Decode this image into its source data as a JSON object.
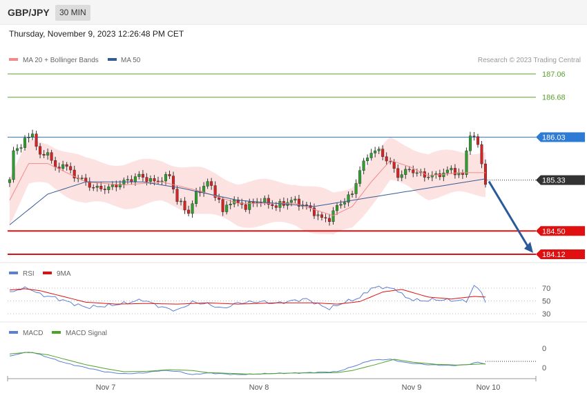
{
  "header": {
    "symbol": "GBP/JPY",
    "timeframe": "30 MIN",
    "datetime": "Thursday, November 9, 2023 12:26:48 PM CET"
  },
  "colors": {
    "ma20": "#f28a8a",
    "ma50": "#355c94",
    "bollinger_fill": "#fde2e2",
    "up_candle": "#2f9e2f",
    "down_candle": "#d62424",
    "resistance": "#5aa02c",
    "pivot": "#2e7bd6",
    "support": "#e01010",
    "current_price_bg": "#333333",
    "arrow": "#2a5a99",
    "rsi": "#5b7fd6",
    "rsi_ma": "#e01010",
    "macd": "#5b7fd6",
    "macd_signal": "#4ea326"
  },
  "chart_data": [
    {
      "type": "candlestick",
      "name": "price",
      "legend": [
        {
          "label": "MA 20 + Bollinger Bands",
          "color": "#f28a8a"
        },
        {
          "label": "MA 50",
          "color": "#355c94"
        }
      ],
      "watermark": "Research © 2023 Trading Central",
      "levels": [
        {
          "value": 187.06,
          "label": "187.06",
          "kind": "resistance"
        },
        {
          "value": 186.68,
          "label": "186.68",
          "kind": "resistance"
        },
        {
          "value": 186.03,
          "label": "186.03",
          "kind": "pivot"
        },
        {
          "value": 184.5,
          "label": "184.50",
          "kind": "support"
        },
        {
          "value": 184.12,
          "label": "184.12",
          "kind": "support"
        }
      ],
      "current_price": {
        "value": 185.33,
        "label": "185.33"
      },
      "x_labels": [
        "Nov 7",
        "Nov 8",
        "Nov 9",
        "Nov 10"
      ],
      "x_label_index": [
        25,
        65,
        105,
        125
      ],
      "candle_count": 126,
      "close_anchors": [
        [
          0,
          185.3
        ],
        [
          1,
          185.8
        ],
        [
          3,
          185.9
        ],
        [
          6,
          186.1
        ],
        [
          8,
          185.7
        ],
        [
          10,
          185.8
        ],
        [
          12,
          185.5
        ],
        [
          14,
          185.6
        ],
        [
          17,
          185.4
        ],
        [
          20,
          185.3
        ],
        [
          22,
          185.2
        ],
        [
          26,
          185.2
        ],
        [
          30,
          185.3
        ],
        [
          34,
          185.4
        ],
        [
          38,
          185.3
        ],
        [
          42,
          185.4
        ],
        [
          44,
          185.0
        ],
        [
          47,
          184.8
        ],
        [
          49,
          185.1
        ],
        [
          52,
          185.3
        ],
        [
          55,
          185.0
        ],
        [
          56,
          184.8
        ],
        [
          58,
          185.0
        ],
        [
          62,
          184.9
        ],
        [
          66,
          185.0
        ],
        [
          70,
          184.9
        ],
        [
          74,
          185.0
        ],
        [
          78,
          184.9
        ],
        [
          82,
          184.7
        ],
        [
          84,
          184.7
        ],
        [
          86,
          184.9
        ],
        [
          90,
          185.1
        ],
        [
          92,
          185.5
        ],
        [
          95,
          185.8
        ],
        [
          97,
          185.8
        ],
        [
          100,
          185.6
        ],
        [
          102,
          185.4
        ],
        [
          105,
          185.5
        ],
        [
          109,
          185.4
        ],
        [
          112,
          185.4
        ],
        [
          116,
          185.5
        ],
        [
          119,
          185.4
        ],
        [
          120,
          185.8
        ],
        [
          121,
          186.1
        ],
        [
          123,
          185.9
        ],
        [
          124,
          185.6
        ],
        [
          125,
          185.3
        ]
      ],
      "ma50_anchors": [
        [
          0,
          184.6
        ],
        [
          10,
          185.1
        ],
        [
          20,
          185.3
        ],
        [
          35,
          185.3
        ],
        [
          45,
          185.2
        ],
        [
          60,
          185.0
        ],
        [
          80,
          184.9
        ],
        [
          90,
          185.0
        ],
        [
          100,
          185.1
        ],
        [
          110,
          185.2
        ],
        [
          120,
          185.3
        ],
        [
          125,
          185.35
        ]
      ],
      "ma20_anchors": [
        [
          0,
          185.0
        ],
        [
          5,
          185.6
        ],
        [
          10,
          185.6
        ],
        [
          20,
          185.3
        ],
        [
          30,
          185.25
        ],
        [
          40,
          185.3
        ],
        [
          50,
          185.15
        ],
        [
          60,
          184.95
        ],
        [
          75,
          184.95
        ],
        [
          85,
          184.75
        ],
        [
          90,
          184.9
        ],
        [
          95,
          185.3
        ],
        [
          100,
          185.65
        ],
        [
          105,
          185.55
        ],
        [
          110,
          185.4
        ],
        [
          118,
          185.45
        ],
        [
          125,
          185.45
        ]
      ],
      "band_half_width": 0.35,
      "y_range": [
        184.0,
        187.5
      ]
    },
    {
      "type": "line",
      "name": "rsi",
      "legend": [
        {
          "label": "RSI",
          "color": "#5b7fd6"
        },
        {
          "label": "9MA",
          "color": "#e01010"
        }
      ],
      "ticks": [
        70,
        50,
        30
      ],
      "y_range": [
        20,
        80
      ],
      "rsi_anchors": [
        [
          0,
          62
        ],
        [
          2,
          68
        ],
        [
          5,
          70
        ],
        [
          8,
          60
        ],
        [
          12,
          55
        ],
        [
          15,
          49
        ],
        [
          20,
          40
        ],
        [
          25,
          42
        ],
        [
          30,
          46
        ],
        [
          35,
          52
        ],
        [
          40,
          40
        ],
        [
          44,
          35
        ],
        [
          48,
          48
        ],
        [
          52,
          45
        ],
        [
          56,
          38
        ],
        [
          60,
          47
        ],
        [
          66,
          49
        ],
        [
          70,
          46
        ],
        [
          74,
          50
        ],
        [
          78,
          53
        ],
        [
          82,
          42
        ],
        [
          84,
          38
        ],
        [
          88,
          48
        ],
        [
          92,
          55
        ],
        [
          95,
          70
        ],
        [
          98,
          72
        ],
        [
          102,
          67
        ],
        [
          104,
          55
        ],
        [
          108,
          50
        ],
        [
          112,
          52
        ],
        [
          116,
          51
        ],
        [
          120,
          50
        ],
        [
          122,
          73
        ],
        [
          124,
          65
        ],
        [
          125,
          47
        ]
      ],
      "ma_anchors": [
        [
          0,
          67
        ],
        [
          4,
          69
        ],
        [
          8,
          66
        ],
        [
          14,
          57
        ],
        [
          20,
          48
        ],
        [
          28,
          45
        ],
        [
          36,
          46
        ],
        [
          44,
          45
        ],
        [
          52,
          47
        ],
        [
          60,
          45
        ],
        [
          70,
          47
        ],
        [
          80,
          47
        ],
        [
          86,
          45
        ],
        [
          92,
          49
        ],
        [
          98,
          64
        ],
        [
          103,
          68
        ],
        [
          110,
          56
        ],
        [
          116,
          53
        ],
        [
          122,
          57
        ],
        [
          125,
          56
        ]
      ]
    },
    {
      "type": "line",
      "name": "macd",
      "legend": [
        {
          "label": "MACD",
          "color": "#5b7fd6"
        },
        {
          "label": "MACD Signal",
          "color": "#4ea326"
        }
      ],
      "ticks": [
        "0",
        "0"
      ],
      "y_range": [
        -0.5,
        0.5
      ],
      "macd_anchors": [
        [
          0,
          0.12
        ],
        [
          3,
          0.2
        ],
        [
          6,
          0.22
        ],
        [
          10,
          0.1
        ],
        [
          15,
          -0.05
        ],
        [
          20,
          -0.15
        ],
        [
          25,
          -0.25
        ],
        [
          30,
          -0.3
        ],
        [
          35,
          -0.28
        ],
        [
          40,
          -0.22
        ],
        [
          44,
          -0.24
        ],
        [
          48,
          -0.32
        ],
        [
          52,
          -0.28
        ],
        [
          56,
          -0.3
        ],
        [
          60,
          -0.32
        ],
        [
          66,
          -0.3
        ],
        [
          70,
          -0.29
        ],
        [
          76,
          -0.28
        ],
        [
          82,
          -0.26
        ],
        [
          86,
          -0.25
        ],
        [
          90,
          -0.13
        ],
        [
          95,
          0.03
        ],
        [
          100,
          0.05
        ],
        [
          104,
          -0.03
        ],
        [
          110,
          -0.08
        ],
        [
          116,
          -0.1
        ],
        [
          120,
          -0.08
        ],
        [
          123,
          -0.02
        ],
        [
          125,
          -0.06
        ]
      ],
      "signal_anchors": [
        [
          0,
          0.18
        ],
        [
          5,
          0.22
        ],
        [
          10,
          0.16
        ],
        [
          15,
          0.04
        ],
        [
          20,
          -0.08
        ],
        [
          25,
          -0.17
        ],
        [
          30,
          -0.25
        ],
        [
          36,
          -0.24
        ],
        [
          42,
          -0.2
        ],
        [
          48,
          -0.22
        ],
        [
          52,
          -0.27
        ],
        [
          58,
          -0.29
        ],
        [
          64,
          -0.31
        ],
        [
          70,
          -0.29
        ],
        [
          76,
          -0.28
        ],
        [
          82,
          -0.28
        ],
        [
          86,
          -0.27
        ],
        [
          90,
          -0.22
        ],
        [
          96,
          -0.08
        ],
        [
          101,
          0.05
        ],
        [
          106,
          -0.02
        ],
        [
          112,
          -0.07
        ],
        [
          118,
          -0.09
        ],
        [
          122,
          -0.07
        ],
        [
          125,
          -0.06
        ]
      ]
    }
  ]
}
